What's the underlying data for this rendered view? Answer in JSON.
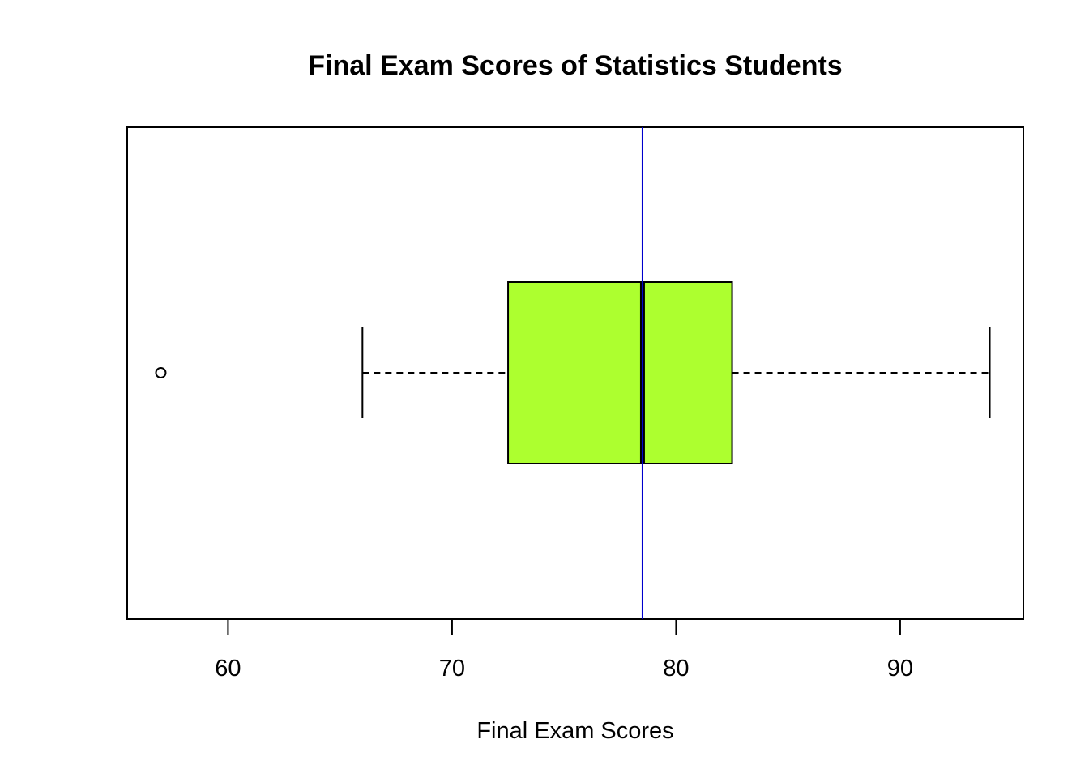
{
  "chart_data": {
    "type": "boxplot",
    "orientation": "horizontal",
    "title": "Final Exam Scores of Statistics Students",
    "xlabel": "Final Exam Scores",
    "ylabel": "",
    "xlim": [
      55.5,
      95.5
    ],
    "x_ticks": [
      60,
      70,
      80,
      90
    ],
    "x_tick_labels": [
      "60",
      "70",
      "80",
      "90"
    ],
    "grid": false,
    "legend": "none",
    "box": {
      "whisker_low": 66,
      "q1": 72.5,
      "median": 78.5,
      "q3": 82.5,
      "whisker_high": 94,
      "outliers": [
        57
      ]
    },
    "reference_line": {
      "orientation": "vertical",
      "x": 78.5,
      "color": "#0000cd"
    },
    "colors": {
      "box_fill": "#adff2f",
      "box_border": "#000000",
      "reference_line": "#0000cd"
    }
  }
}
